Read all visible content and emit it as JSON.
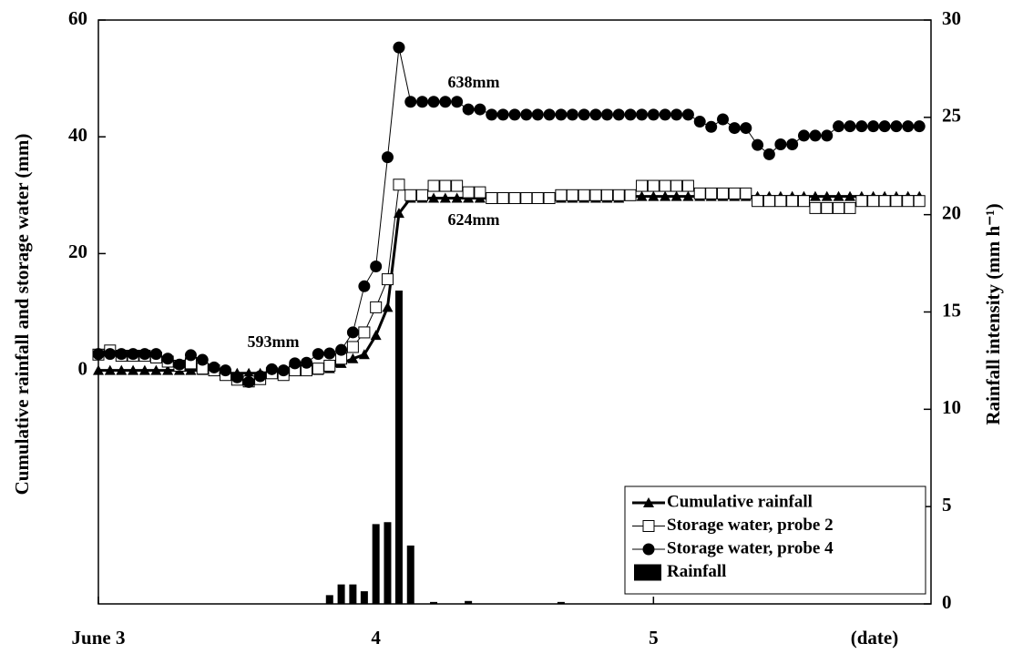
{
  "chart_data": {
    "type": "line",
    "xlabel": "(date)",
    "ylabel": "Cumulative rainfall and storage water (mm)",
    "y2label": "Rainfall intensity (mm h⁻¹)",
    "xlim": [
      3,
      6
    ],
    "xticks": [
      {
        "value": 3,
        "label": "June 3"
      },
      4,
      5
    ],
    "ylim": [
      -40,
      60
    ],
    "yticks": [
      0,
      20,
      40,
      60
    ],
    "y2lim": [
      0,
      30
    ],
    "y2ticks": [
      0,
      5,
      10,
      15,
      20,
      25,
      30
    ],
    "legend": "lower right",
    "annotations": [
      "593mm",
      "638mm",
      "624mm"
    ],
    "x": [
      3,
      3.042,
      3.083,
      3.125,
      3.167,
      3.208,
      3.25,
      3.292,
      3.333,
      3.375,
      3.417,
      3.458,
      3.5,
      3.542,
      3.583,
      3.625,
      3.667,
      3.708,
      3.75,
      3.792,
      3.833,
      3.875,
      3.917,
      3.958,
      4,
      4.042,
      4.083,
      4.125,
      4.167,
      4.208,
      4.25,
      4.292,
      4.333,
      4.375,
      4.417,
      4.458,
      4.5,
      4.542,
      4.583,
      4.625,
      4.667,
      4.708,
      4.75,
      4.792,
      4.833,
      4.875,
      4.917,
      4.958,
      5,
      5.042,
      5.083,
      5.125,
      5.167,
      5.208,
      5.25,
      5.292,
      5.333,
      5.375,
      5.417,
      5.458,
      5.5,
      5.542,
      5.583,
      5.625,
      5.667,
      5.708,
      5.75,
      5.792,
      5.833,
      5.875,
      5.917,
      5.958
    ],
    "series": [
      {
        "name": "Cumulative rainfall",
        "type": "line",
        "marker": "triangle",
        "color": "#000000",
        "values": [
          0,
          0,
          0,
          0,
          0,
          0,
          0,
          0,
          0,
          0,
          0,
          -0.5,
          -0.5,
          -0.5,
          -0.5,
          -0.3,
          0,
          0,
          0,
          0,
          0.3,
          1.2,
          2,
          2.7,
          6,
          10.8,
          26.9,
          29.5,
          29.5,
          29.5,
          29.5,
          29.5,
          29.5,
          29.5,
          29.5,
          29.5,
          29.5,
          29.5,
          29.5,
          29.5,
          29.5,
          29.5,
          29.5,
          29.5,
          29.5,
          29.5,
          29.8,
          29.8,
          29.8,
          29.8,
          29.8,
          29.8,
          29.8,
          29.8,
          29.8,
          29.8,
          29.8,
          29.8,
          29.8,
          29.8,
          29.8,
          29.8,
          29.8,
          29.8,
          29.8,
          29.8,
          29.8,
          29.8,
          29.8,
          29.8,
          29.8,
          29.8
        ]
      },
      {
        "name": "Storage water, probe 2",
        "type": "line",
        "marker": "square",
        "color": "#000000",
        "values": [
          2.7,
          3.4,
          2.5,
          2.5,
          2.5,
          2.2,
          1.5,
          0.8,
          1.2,
          0.3,
          0,
          -0.8,
          -1.6,
          -1.9,
          -1.5,
          -0.5,
          -0.8,
          0,
          0,
          0.3,
          0.8,
          2,
          4,
          6.5,
          10.8,
          15.6,
          31.8,
          30,
          30,
          31.6,
          31.6,
          31.6,
          30.5,
          30.5,
          29.5,
          29.5,
          29.5,
          29.5,
          29.5,
          29.5,
          30,
          30,
          30,
          30,
          30,
          30,
          30,
          31.6,
          31.6,
          31.6,
          31.6,
          31.6,
          30.3,
          30.3,
          30.3,
          30.3,
          30.3,
          29,
          29,
          29,
          29,
          29,
          27.8,
          27.8,
          27.8,
          27.8,
          29,
          29,
          29,
          29,
          29,
          29
        ]
      },
      {
        "name": "Storage water, probe 4",
        "type": "line",
        "marker": "circle",
        "color": "#000000",
        "values": [
          2.8,
          2.8,
          2.8,
          2.8,
          2.8,
          2.8,
          2,
          1,
          2.6,
          1.8,
          0.5,
          0,
          -1.2,
          -2,
          -1,
          0.2,
          0,
          1.2,
          1.3,
          2.8,
          2.9,
          3.5,
          6.5,
          14.4,
          17.8,
          36.5,
          55.3,
          46,
          46,
          46,
          46,
          46,
          44.7,
          44.7,
          43.8,
          43.8,
          43.8,
          43.8,
          43.8,
          43.8,
          43.8,
          43.8,
          43.8,
          43.8,
          43.8,
          43.8,
          43.8,
          43.8,
          43.8,
          43.8,
          43.8,
          43.8,
          42.6,
          41.7,
          43,
          41.5,
          41.5,
          38.6,
          37,
          38.7,
          38.7,
          40.2,
          40.2,
          40.2,
          41.8,
          41.8,
          41.8,
          41.8,
          41.8,
          41.8,
          41.8,
          41.8
        ]
      },
      {
        "name": "Rainfall",
        "type": "bar",
        "axis": "y2",
        "color": "#000000",
        "values": [
          0,
          0,
          0,
          0,
          0,
          0,
          0,
          0,
          0,
          0,
          0,
          0,
          0,
          0,
          0,
          0,
          0,
          0,
          0,
          0,
          0.45,
          1,
          1,
          0.65,
          4.1,
          4.2,
          16.1,
          3,
          0,
          0.1,
          0,
          0,
          0.15,
          0,
          0,
          0,
          0,
          0,
          0,
          0,
          0.1,
          0,
          0,
          0,
          0,
          0,
          0,
          0,
          0,
          0,
          0,
          0,
          0,
          0,
          0,
          0,
          0,
          0,
          0,
          0,
          0,
          0,
          0,
          0,
          0,
          0,
          0,
          0,
          0,
          0,
          0,
          0
        ]
      }
    ]
  }
}
